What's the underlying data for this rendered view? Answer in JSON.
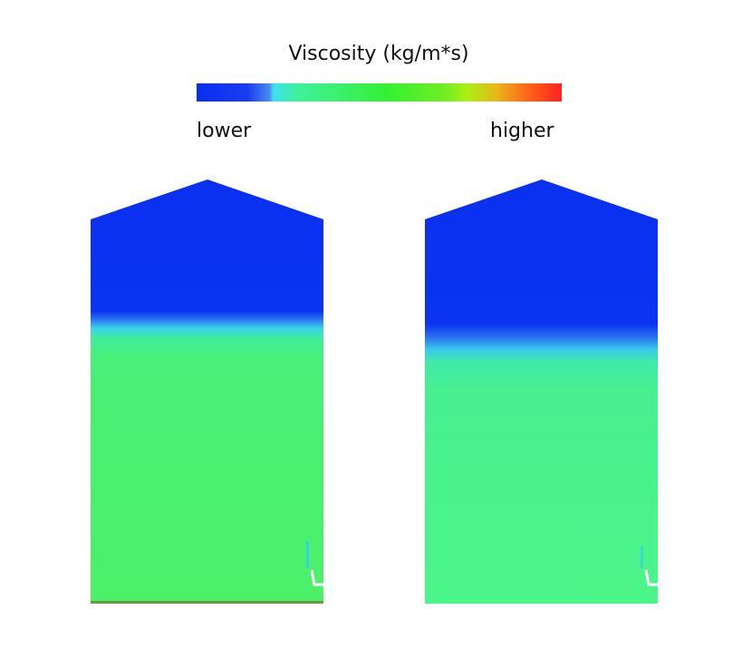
{
  "colorbar": {
    "title": "Viscosity (kg/m*s)",
    "low_label": "lower",
    "high_label": "higher",
    "colors": [
      "#0a2ef2",
      "#3fe0ee",
      "#3cf070",
      "#33f033",
      "#aaf014",
      "#ff6a18",
      "#ff2222"
    ]
  },
  "panels": [
    {
      "name": "left-contour",
      "upper_color": "#0a30f0",
      "lower_color": "#4af070"
    },
    {
      "name": "right-contour",
      "upper_color": "#0a30f0",
      "lower_color": "#4cf58a"
    }
  ]
}
